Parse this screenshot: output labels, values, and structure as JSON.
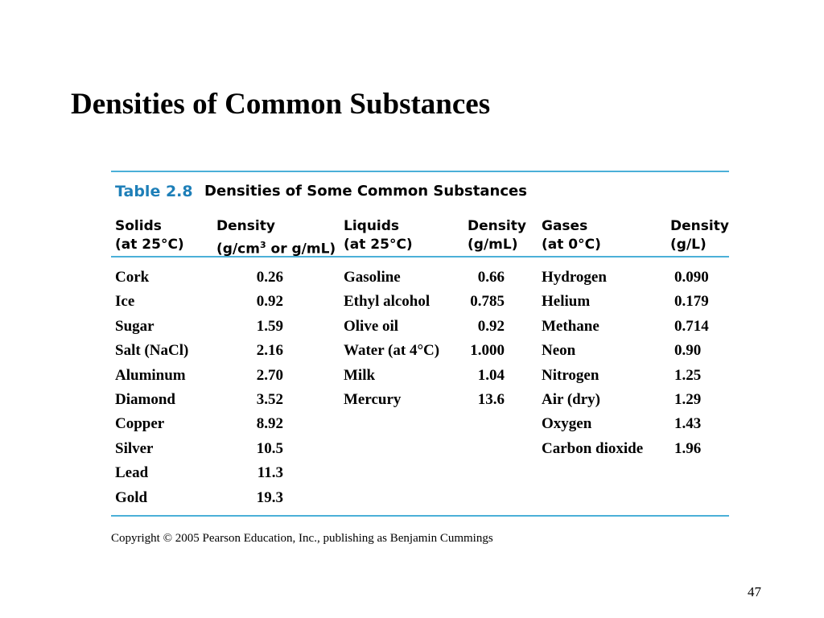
{
  "slide": {
    "title": "Densities of Common Substances",
    "page_number": "47",
    "copyright": "Copyright © 2005 Pearson Education, Inc., publishing as Benjamin Cummings"
  },
  "table": {
    "number": "Table 2.8",
    "caption": "Densities of Some Common Substances",
    "accent_color": "#4bb0d8",
    "number_color": "#1e7fb8",
    "headers": {
      "solids": "Solids",
      "solids_sub": "(at 25°C)",
      "solids_density": "Density",
      "solids_density_unit_a": "(g/cm",
      "solids_density_unit_sup": "3",
      "solids_density_unit_b": " or g/mL)",
      "liquids": "Liquids",
      "liquids_sub": "(at 25°C)",
      "liquids_density": "Density",
      "liquids_density_unit": "(g/mL)",
      "gases": "Gases",
      "gases_sub": "(at 0°C)",
      "gases_density": "Density",
      "gases_density_unit": "(g/L)"
    },
    "solids": [
      {
        "name": "Cork",
        "density": "0.26"
      },
      {
        "name": "Ice",
        "density": "0.92"
      },
      {
        "name": "Sugar",
        "density": "1.59"
      },
      {
        "name": "Salt (NaCl)",
        "density": "2.16"
      },
      {
        "name": "Aluminum",
        "density": "2.70"
      },
      {
        "name": "Diamond",
        "density": "3.52"
      },
      {
        "name": "Copper",
        "density": "8.92"
      },
      {
        "name": "Silver",
        "density": "10.5"
      },
      {
        "name": "Lead",
        "density": "11.3"
      },
      {
        "name": "Gold",
        "density": "19.3"
      }
    ],
    "liquids": [
      {
        "name": "Gasoline",
        "density": "0.66"
      },
      {
        "name": "Ethyl alcohol",
        "density": "0.785"
      },
      {
        "name": "Olive oil",
        "density": "0.92"
      },
      {
        "name": "Water (at 4°C)",
        "density": "1.000"
      },
      {
        "name": "Milk",
        "density": "1.04"
      },
      {
        "name": "Mercury",
        "density": "13.6"
      }
    ],
    "gases": [
      {
        "name": "Hydrogen",
        "density": "0.090"
      },
      {
        "name": "Helium",
        "density": "0.179"
      },
      {
        "name": "Methane",
        "density": "0.714"
      },
      {
        "name": "Neon",
        "density": "0.90"
      },
      {
        "name": "Nitrogen",
        "density": "1.25"
      },
      {
        "name": "Air (dry)",
        "density": "1.29"
      },
      {
        "name": "Oxygen",
        "density": "1.43"
      },
      {
        "name": "Carbon dioxide",
        "density": "1.96"
      }
    ]
  }
}
